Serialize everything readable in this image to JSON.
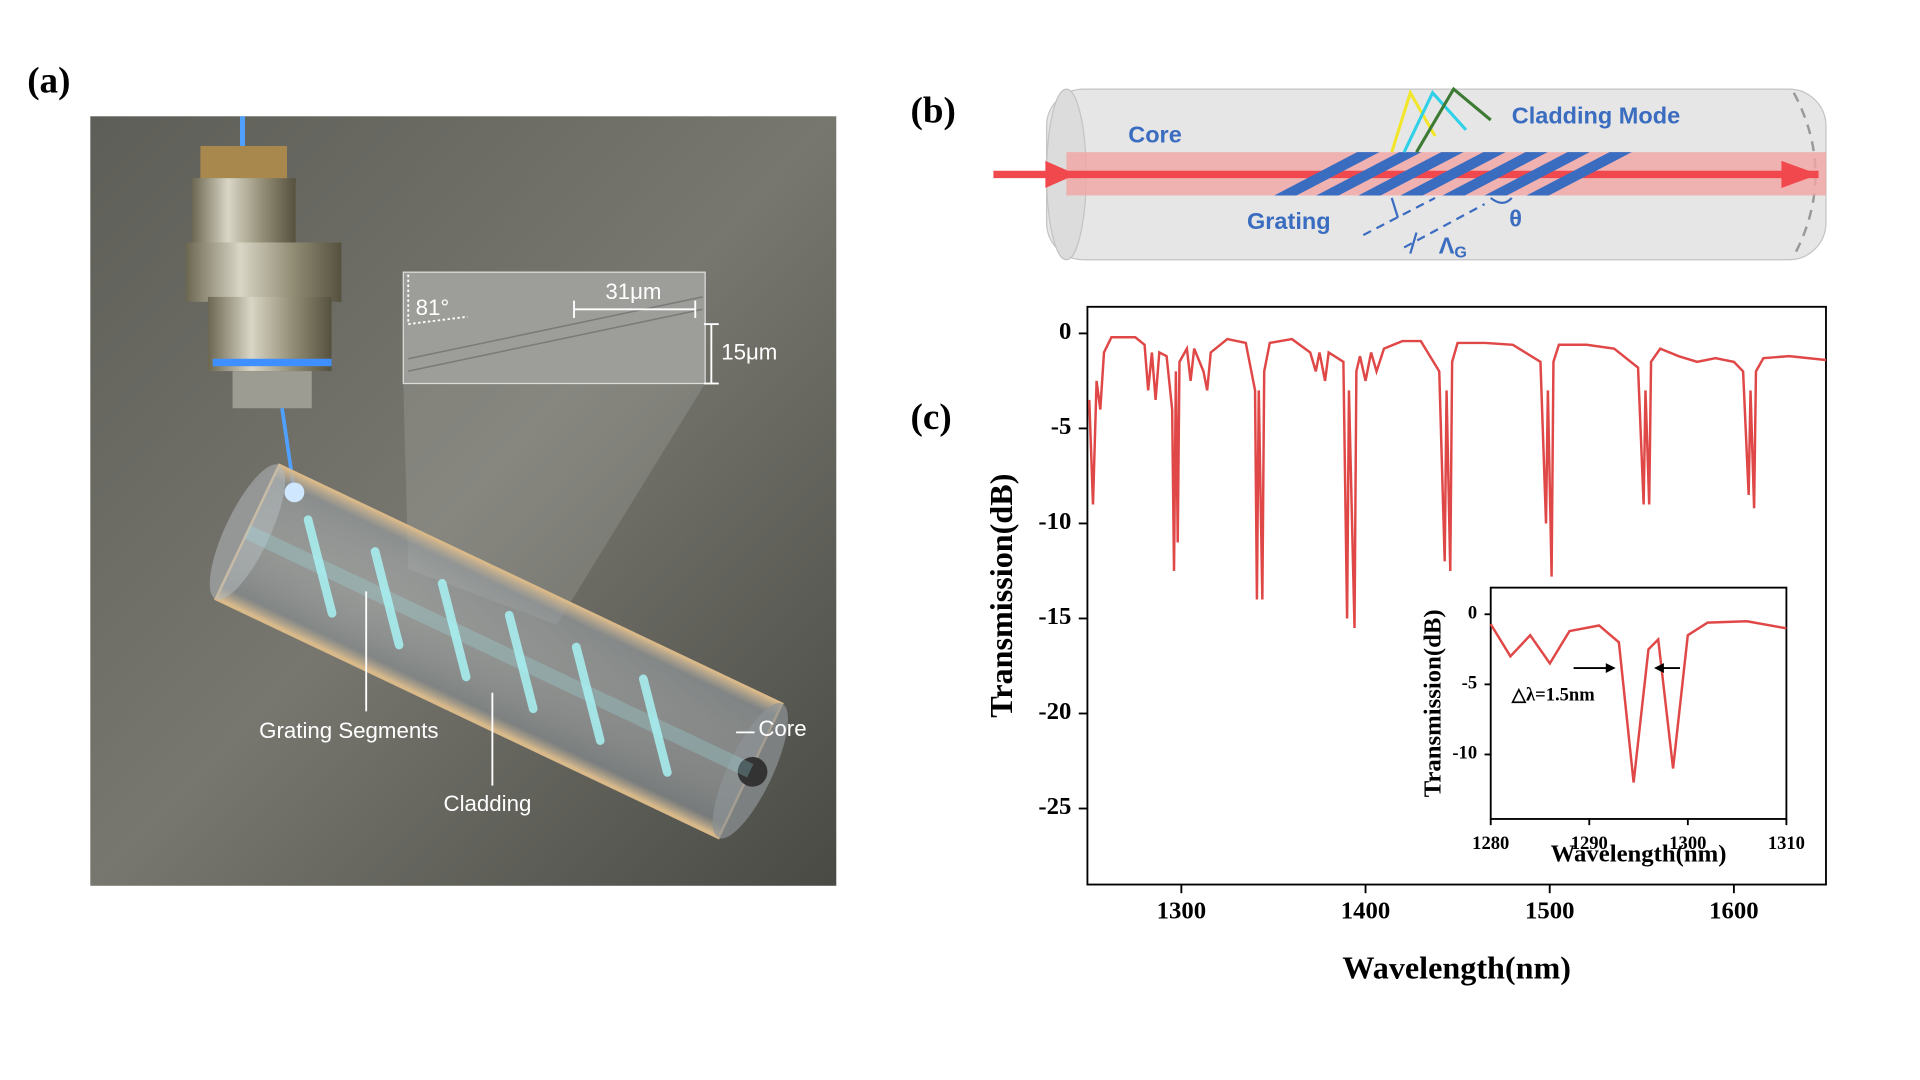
{
  "panels": {
    "a": {
      "label": "(a)",
      "angle": "81°",
      "length": "31μm",
      "width": "15μm",
      "segments": "Grating Segments",
      "cladding": "Cladding",
      "core": "Core"
    },
    "b": {
      "label": "(b)",
      "core": "Core",
      "mode": "Cladding Mode",
      "grating": "Grating",
      "theta": "θ",
      "period": {
        "symbol": "Λ",
        "subscript": "G"
      }
    },
    "c": {
      "label": "(c)"
    }
  },
  "chart_data": [
    {
      "type": "line",
      "xlabel": "Wavelength(nm)",
      "ylabel": "Transmission(dB)",
      "xlim": [
        1249,
        1650
      ],
      "ylim": [
        -29,
        1.4
      ],
      "xticks": [
        1300,
        1400,
        1500,
        1600
      ],
      "yticks": [
        0,
        -5,
        -10,
        -15,
        -20,
        -25
      ],
      "x": [
        1250,
        1252,
        1254,
        1256,
        1258,
        1262,
        1275,
        1280,
        1282,
        1284,
        1286,
        1288,
        1292,
        1295,
        1296,
        1297,
        1298,
        1299,
        1303,
        1305,
        1307,
        1312,
        1314,
        1316,
        1325,
        1335,
        1340,
        1341,
        1342,
        1344,
        1345,
        1348,
        1360,
        1370,
        1373,
        1375,
        1378,
        1380,
        1388,
        1390,
        1391,
        1394,
        1395,
        1397,
        1400,
        1403,
        1406,
        1410,
        1420,
        1430,
        1440,
        1443,
        1444,
        1446,
        1447,
        1450,
        1465,
        1480,
        1495,
        1498,
        1499,
        1501,
        1502,
        1505,
        1520,
        1535,
        1548,
        1551,
        1552,
        1554,
        1555,
        1560,
        1570,
        1580,
        1590,
        1600,
        1605,
        1608,
        1609,
        1611,
        1612,
        1616,
        1630,
        1650
      ],
      "series": [
        {
          "color": "#e04848",
          "values": [
            -3.5,
            -9,
            -2.5,
            -4,
            -1,
            -0.2,
            -0.2,
            -0.6,
            -3,
            -1,
            -3.5,
            -1,
            -1.2,
            -4,
            -12.5,
            -2,
            -11,
            -1.5,
            -0.8,
            -2.5,
            -0.8,
            -2,
            -3,
            -1,
            -0.3,
            -0.5,
            -3,
            -14,
            -3,
            -14,
            -2,
            -0.5,
            -0.3,
            -1,
            -2,
            -1,
            -2.5,
            -1,
            -1.5,
            -15,
            -3,
            -15.5,
            -2,
            -1.2,
            -2.5,
            -1,
            -2,
            -0.8,
            -0.4,
            -0.4,
            -2,
            -12,
            -3,
            -12.5,
            -1.5,
            -0.5,
            -0.5,
            -0.6,
            -1.5,
            -10,
            -3,
            -12.8,
            -1.5,
            -0.6,
            -0.6,
            -0.8,
            -1.8,
            -9,
            -3,
            -9,
            -1.5,
            -0.8,
            -1.2,
            -1.5,
            -1.3,
            -1.5,
            -2,
            -8.5,
            -3,
            -9.2,
            -2,
            -1.3,
            -1.2,
            -1.4
          ]
        }
      ]
    },
    {
      "type": "line",
      "xlabel": "Wavelength(nm)",
      "ylabel": "Transmission(dB)",
      "annotation": "△λ=1.5nm",
      "xlim": [
        1280,
        1310
      ],
      "ylim": [
        -14.6,
        1.9
      ],
      "xticks": [
        1280,
        1290,
        1300,
        1310
      ],
      "yticks": [
        0,
        -5,
        -10
      ],
      "x": [
        1280,
        1282,
        1284,
        1286,
        1288,
        1291,
        1293,
        1294.5,
        1296,
        1297,
        1298.5,
        1300,
        1302,
        1306,
        1310
      ],
      "series": [
        {
          "color": "#e04848",
          "values": [
            -0.7,
            -3,
            -1.5,
            -3.5,
            -1.2,
            -0.8,
            -2,
            -12,
            -2.5,
            -1.8,
            -11,
            -1.5,
            -0.6,
            -0.5,
            -1
          ]
        }
      ]
    }
  ]
}
